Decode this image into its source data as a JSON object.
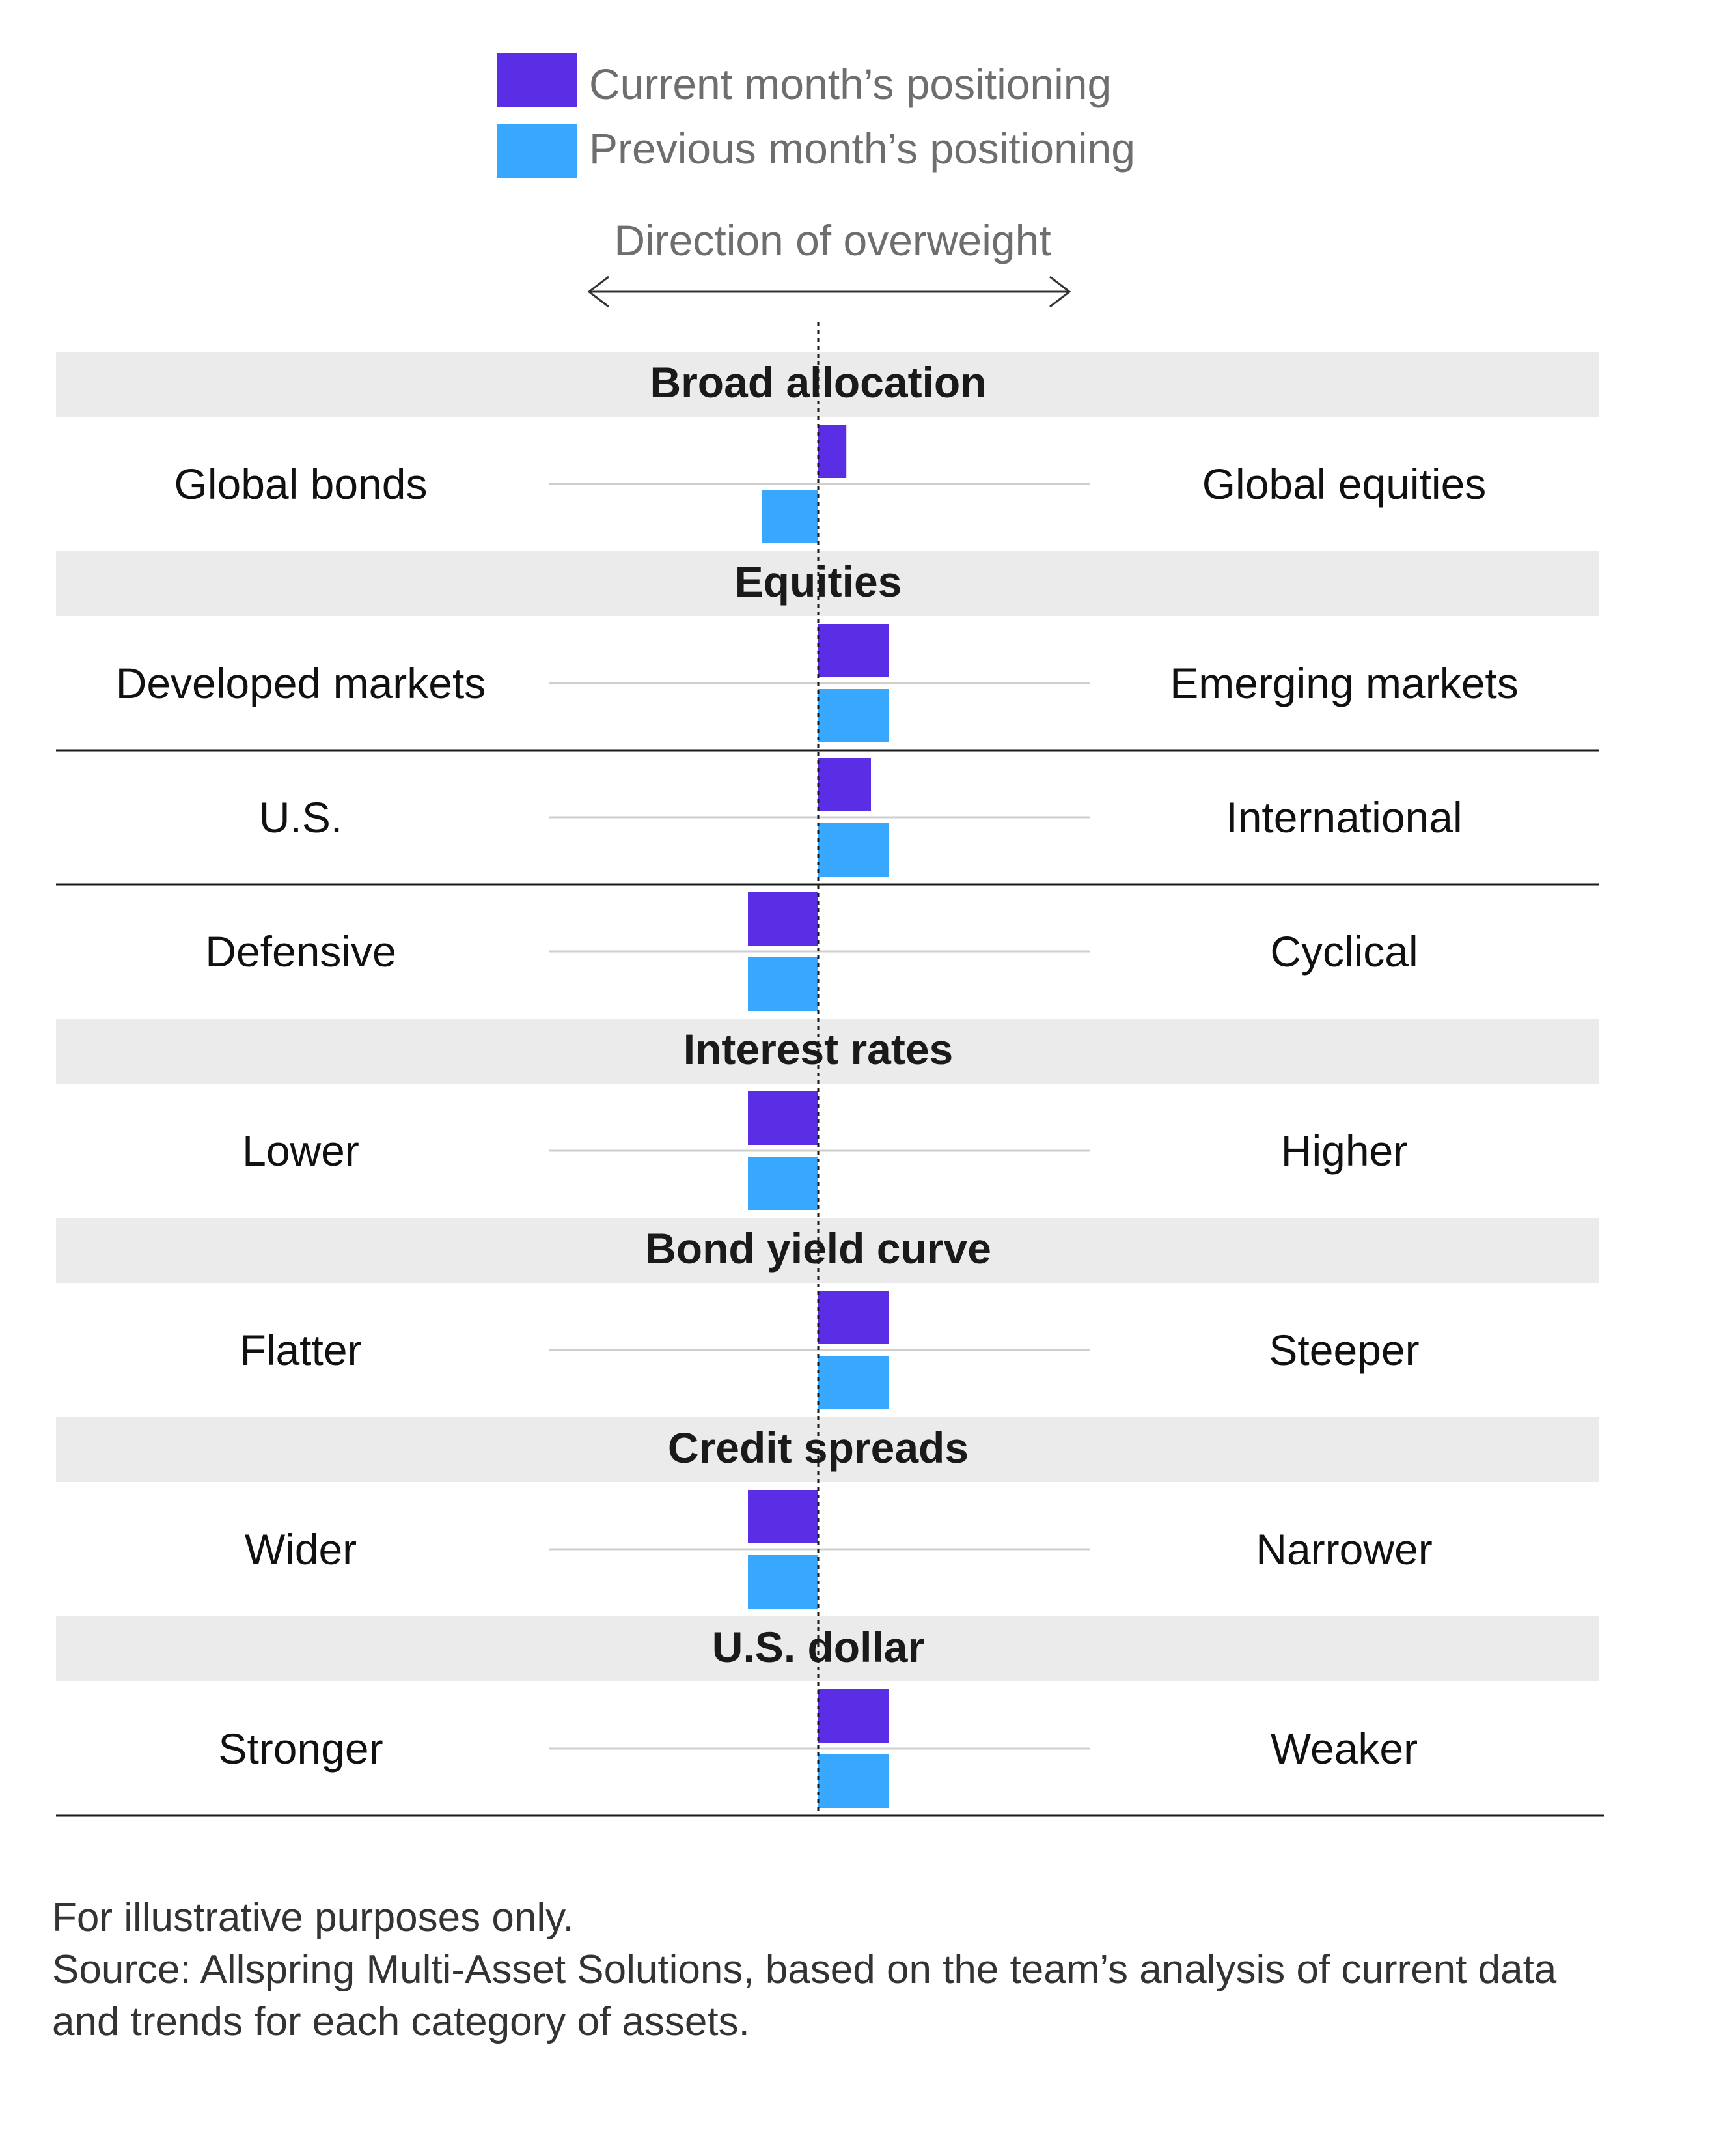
{
  "legend": [
    {
      "label": "Current month’s positioning",
      "color": "#5a2ee5"
    },
    {
      "label": "Previous month’s positioning",
      "color": "#38a8ff"
    }
  ],
  "direction_label": "Direction of overweight",
  "chart_data": {
    "type": "bar",
    "orientation": "horizontal-diverging",
    "value_scale": "relative tilt, negative = toward left label, positive = toward right label",
    "sections": [
      {
        "title": "Broad allocation",
        "rows": [
          {
            "left": "Global bonds",
            "right": "Global equities",
            "current": 0.4,
            "previous": -0.8
          }
        ]
      },
      {
        "title": "Equities",
        "rows": [
          {
            "left": "Developed markets",
            "right": "Emerging markets",
            "current": 1,
            "previous": 1
          },
          {
            "left": "U.S.",
            "right": "International",
            "current": 0.75,
            "previous": 1
          },
          {
            "left": "Defensive",
            "right": "Cyclical",
            "current": -1,
            "previous": -1
          }
        ]
      },
      {
        "title": "Interest rates",
        "rows": [
          {
            "left": "Lower",
            "right": "Higher",
            "current": -1,
            "previous": -1
          }
        ]
      },
      {
        "title": "Bond yield curve",
        "rows": [
          {
            "left": "Flatter",
            "right": "Steeper",
            "current": 1,
            "previous": 1
          }
        ]
      },
      {
        "title": "Credit spreads",
        "rows": [
          {
            "left": "Wider",
            "right": "Narrower",
            "current": -1,
            "previous": -1
          }
        ]
      },
      {
        "title": "U.S. dollar",
        "rows": [
          {
            "left": "Stronger",
            "right": "Weaker",
            "current": 1,
            "previous": 1
          }
        ]
      }
    ]
  },
  "footnotes": [
    "For illustrative purposes only.",
    "Source: Allspring Multi-Asset Solutions, based on the team’s analysis of current data",
    "and trends for each category of assets."
  ]
}
